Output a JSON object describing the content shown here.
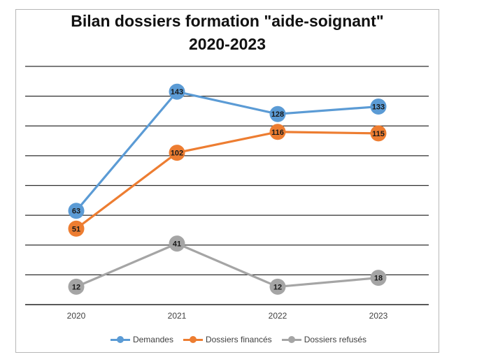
{
  "chart_data": {
    "type": "line",
    "title": "Bilan dossiers formation \"aide-soignant\"",
    "subtitle": "2020-2023",
    "categories": [
      "2020",
      "2021",
      "2022",
      "2023"
    ],
    "series": [
      {
        "name": "Demandes",
        "values": [
          63,
          143,
          128,
          133
        ],
        "color": "#5b9bd5"
      },
      {
        "name": "Dossiers financés",
        "values": [
          51,
          102,
          116,
          115
        ],
        "color": "#ed7d31"
      },
      {
        "name": "Dossiers refusés",
        "values": [
          12,
          41,
          12,
          18
        ],
        "color": "#a5a5a5"
      }
    ],
    "xlabel": "",
    "ylabel": "",
    "ylim": [
      0,
      160
    ],
    "y_ticks_shown": false,
    "grid": true,
    "data_labels": true,
    "legend_position": "bottom"
  }
}
